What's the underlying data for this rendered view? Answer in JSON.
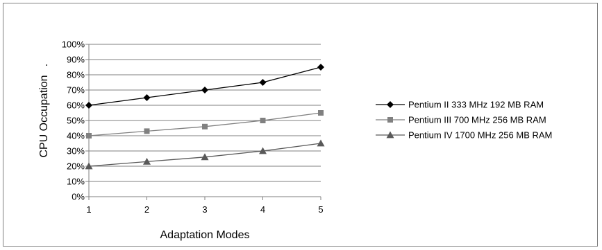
{
  "chart_data": {
    "type": "line",
    "title": "",
    "xlabel": "Adaptation Modes",
    "ylabel": "CPU Occupation",
    "ylabel_suffix": ".",
    "x": [
      1,
      2,
      3,
      4,
      5
    ],
    "x_tick_labels": [
      "1",
      "2",
      "3",
      "4",
      "5"
    ],
    "ylim": [
      0,
      100
    ],
    "y_tick_labels": [
      "0%",
      "10%",
      "20%",
      "30%",
      "40%",
      "50%",
      "60%",
      "70%",
      "80%",
      "90%",
      "100%"
    ],
    "grid": "horizontal",
    "legend_position": "right",
    "series": [
      {
        "name": "Pentium II 333 MHz 192 MB RAM",
        "marker": "diamond",
        "color": "#000000",
        "values": [
          60,
          65,
          70,
          75,
          85
        ]
      },
      {
        "name": "Pentium III 700 MHz 256 MB RAM",
        "marker": "square",
        "color": "#808080",
        "values": [
          40,
          43,
          46,
          50,
          55
        ]
      },
      {
        "name": "Pentium IV 1700 MHz 256 MB RAM",
        "marker": "triangle",
        "color": "#595959",
        "values": [
          20,
          23,
          26,
          30,
          35
        ]
      }
    ]
  }
}
